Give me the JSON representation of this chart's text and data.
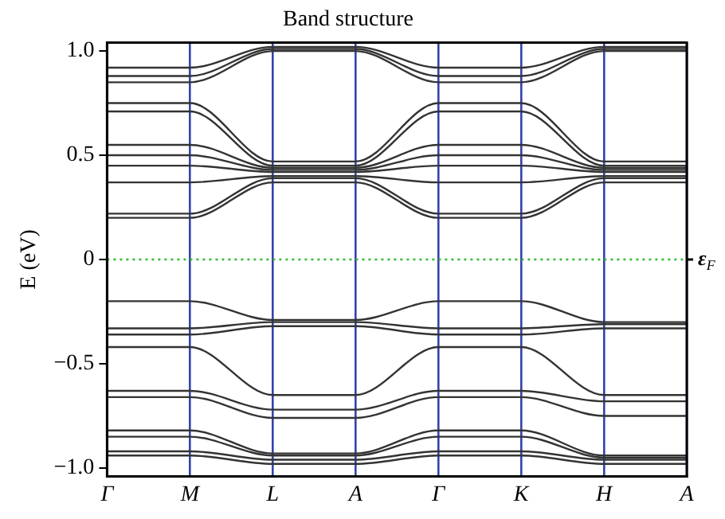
{
  "chart_data": {
    "type": "line",
    "title": "Band structure",
    "ylabel": "E (eV)",
    "categories": [
      "Γ",
      "M",
      "L",
      "A",
      "Γ",
      "K",
      "H",
      "A"
    ],
    "ylim": [
      -1.04,
      1.04
    ],
    "yticks": [
      {
        "value": -1,
        "label": "−1.0"
      },
      {
        "value": -0.5,
        "label": "−0.5"
      },
      0,
      {
        "value": 0.5,
        "label": "0.5"
      },
      {
        "value": 1,
        "label": "1.0"
      }
    ],
    "grid": "x",
    "legend": false,
    "marker": "none",
    "line_style": "solid",
    "ref_lines": [
      {
        "axis": "y",
        "value": 0,
        "label": "ε$_{F}$",
        "color": "#33bb33",
        "line_style": "dotted"
      }
    ],
    "series": [
      {
        "color": "#333333",
        "values": [
          0.92,
          0.92,
          1.02,
          1.02,
          0.92,
          0.92,
          1.02,
          1.02
        ]
      },
      {
        "color": "#333333",
        "values": [
          0.88,
          0.88,
          1.01,
          1.01,
          0.88,
          0.88,
          1.01,
          1.01
        ]
      },
      {
        "color": "#333333",
        "values": [
          0.85,
          0.85,
          1.0,
          1.0,
          0.85,
          0.85,
          1.0,
          1.0
        ]
      },
      {
        "color": "#333333",
        "values": [
          0.75,
          0.75,
          0.47,
          0.47,
          0.75,
          0.75,
          0.47,
          0.47
        ]
      },
      {
        "color": "#333333",
        "values": [
          0.71,
          0.71,
          0.45,
          0.45,
          0.71,
          0.71,
          0.45,
          0.45
        ]
      },
      {
        "color": "#333333",
        "values": [
          0.55,
          0.55,
          0.44,
          0.44,
          0.55,
          0.55,
          0.44,
          0.44
        ]
      },
      {
        "color": "#333333",
        "values": [
          0.5,
          0.5,
          0.43,
          0.43,
          0.5,
          0.5,
          0.43,
          0.43
        ]
      },
      {
        "color": "#333333",
        "values": [
          0.45,
          0.45,
          0.42,
          0.42,
          0.45,
          0.45,
          0.42,
          0.42
        ]
      },
      {
        "color": "#333333",
        "values": [
          0.37,
          0.37,
          0.4,
          0.4,
          0.37,
          0.37,
          0.4,
          0.4
        ]
      },
      {
        "color": "#333333",
        "values": [
          0.22,
          0.22,
          0.39,
          0.39,
          0.22,
          0.22,
          0.39,
          0.39
        ]
      },
      {
        "color": "#333333",
        "values": [
          0.2,
          0.2,
          0.37,
          0.37,
          0.2,
          0.2,
          0.37,
          0.37
        ]
      },
      {
        "color": "#333333",
        "values": [
          -0.2,
          -0.2,
          -0.29,
          -0.29,
          -0.2,
          -0.2,
          -0.3,
          -0.3
        ]
      },
      {
        "color": "#333333",
        "values": [
          -0.33,
          -0.33,
          -0.3,
          -0.3,
          -0.33,
          -0.33,
          -0.31,
          -0.31
        ]
      },
      {
        "color": "#333333",
        "values": [
          -0.36,
          -0.36,
          -0.32,
          -0.32,
          -0.36,
          -0.36,
          -0.33,
          -0.33
        ]
      },
      {
        "color": "#333333",
        "values": [
          -0.42,
          -0.42,
          -0.65,
          -0.65,
          -0.42,
          -0.42,
          -0.65,
          -0.65
        ]
      },
      {
        "color": "#333333",
        "values": [
          -0.63,
          -0.63,
          -0.72,
          -0.72,
          -0.63,
          -0.63,
          -0.68,
          -0.68
        ]
      },
      {
        "color": "#333333",
        "values": [
          -0.66,
          -0.66,
          -0.76,
          -0.76,
          -0.66,
          -0.66,
          -0.75,
          -0.75
        ]
      },
      {
        "color": "#333333",
        "values": [
          -0.82,
          -0.82,
          -0.93,
          -0.93,
          -0.82,
          -0.82,
          -0.94,
          -0.94
        ]
      },
      {
        "color": "#333333",
        "values": [
          -0.85,
          -0.85,
          -0.94,
          -0.94,
          -0.85,
          -0.85,
          -0.95,
          -0.95
        ]
      },
      {
        "color": "#333333",
        "values": [
          -0.92,
          -0.92,
          -0.96,
          -0.96,
          -0.92,
          -0.92,
          -0.96,
          -0.96
        ]
      },
      {
        "color": "#333333",
        "values": [
          -0.94,
          -0.94,
          -0.98,
          -0.98,
          -0.94,
          -0.94,
          -0.98,
          -0.98
        ]
      }
    ]
  }
}
